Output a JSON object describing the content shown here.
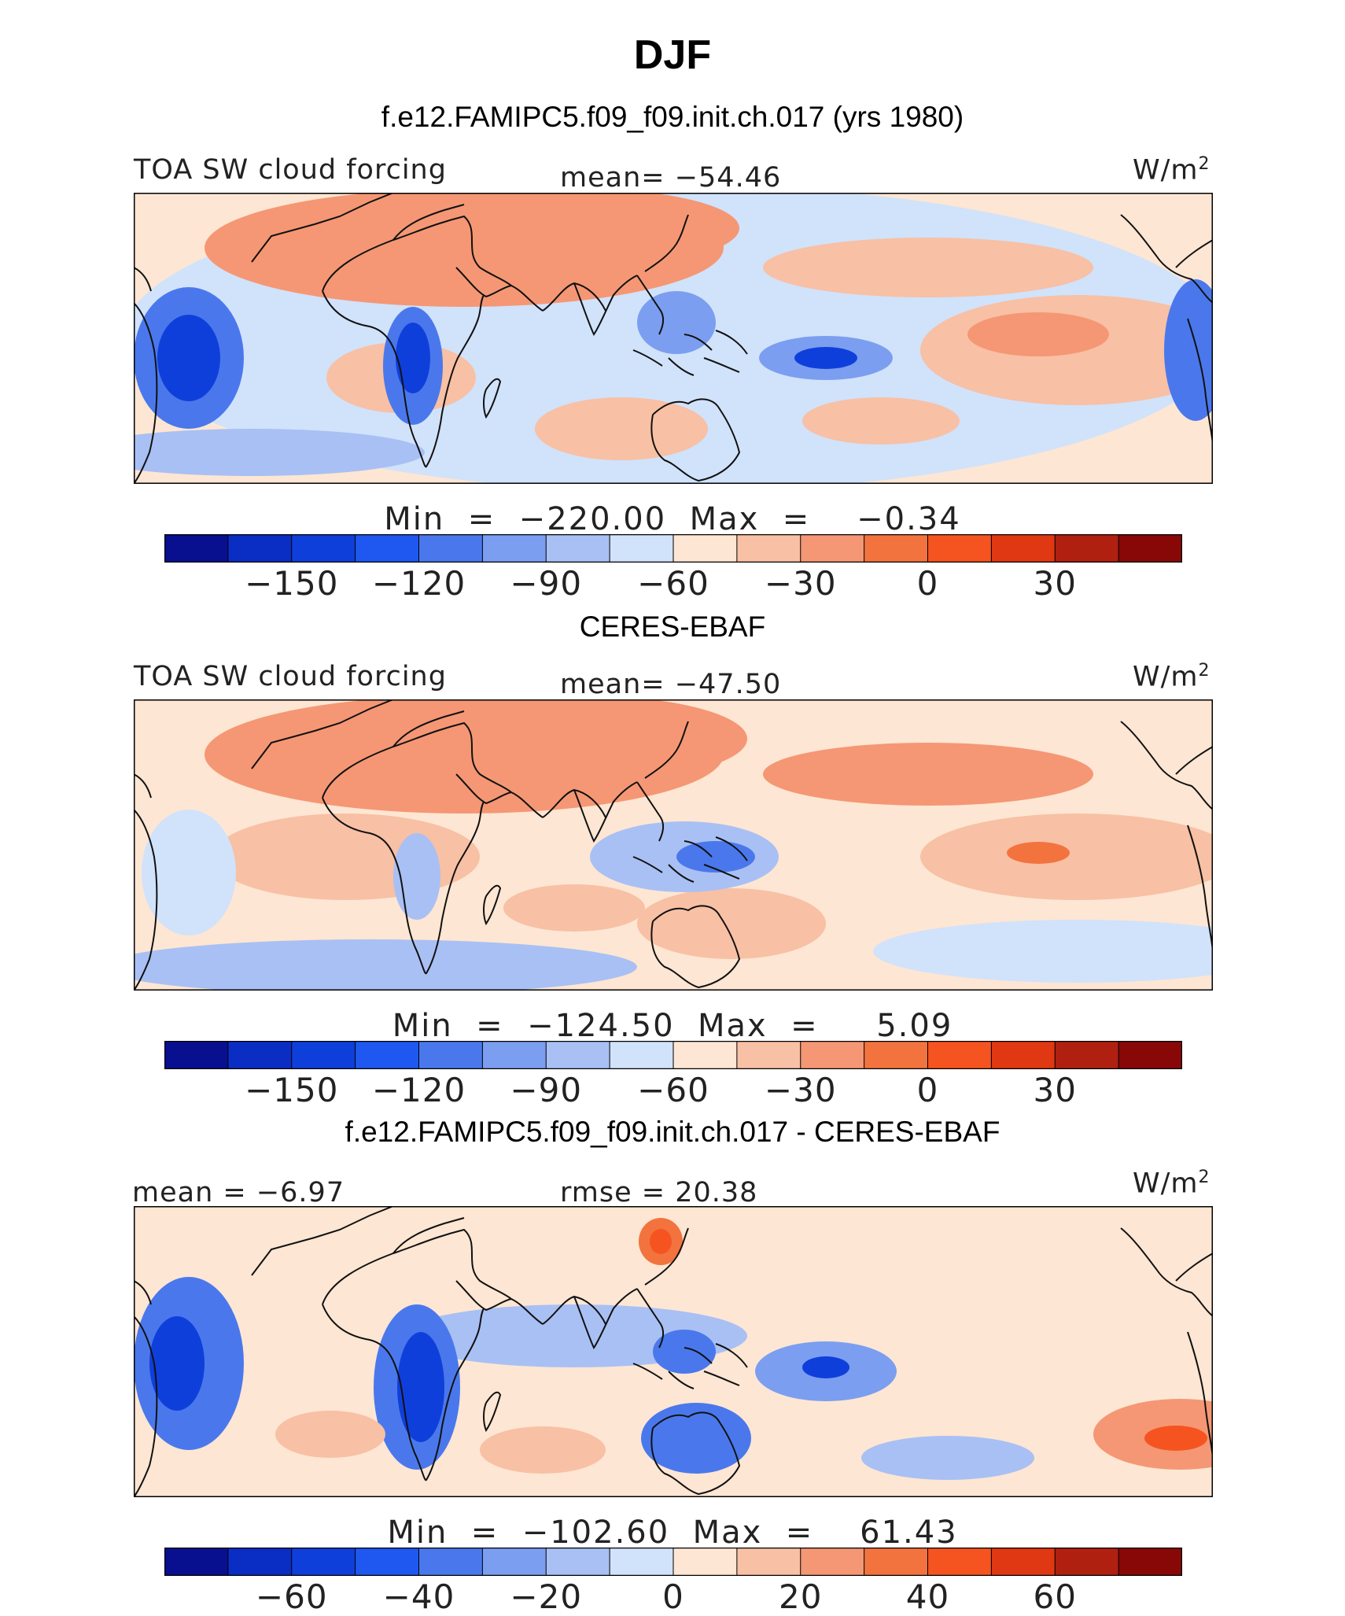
{
  "title": "DJF",
  "colors": {
    "scale": [
      "#08108f",
      "#0a2ec4",
      "#0f3fdb",
      "#1f58f0",
      "#4a78ec",
      "#7b9ef0",
      "#a9c0f4",
      "#d1e2fb",
      "#fde6d3",
      "#f8c0a4",
      "#f59774",
      "#f3733f",
      "#f55420",
      "#e03812",
      "#b02010",
      "#880808"
    ],
    "land": "#f3733f",
    "coast": "#111111",
    "frame": "#000000"
  },
  "panels": [
    {
      "header": "f.e12.FAMIPC5.f09_f09.init.ch.017 (yrs 1980)",
      "left_label": "TOA SW cloud forcing",
      "center_label": "mean=  −54.46",
      "units": "W/m",
      "units_sup": "2",
      "min_label": "Min",
      "min_eq": "=",
      "min_value": "−220.00",
      "max_label": "Max",
      "max_eq": "=",
      "max_value": "−0.34",
      "colorbar_ticks": [
        "−150",
        "−120",
        "−90",
        "−60",
        "−30",
        "0",
        "30"
      ]
    },
    {
      "header": "CERES-EBAF",
      "left_label": "TOA SW cloud forcing",
      "center_label": "mean=  −47.50",
      "units": "W/m",
      "units_sup": "2",
      "min_label": "Min",
      "min_eq": "=",
      "min_value": "−124.50",
      "max_label": "Max",
      "max_eq": "=",
      "max_value": "5.09",
      "colorbar_ticks": [
        "−150",
        "−120",
        "−90",
        "−60",
        "−30",
        "0",
        "30"
      ]
    },
    {
      "header": "f.e12.FAMIPC5.f09_f09.init.ch.017 - CERES-EBAF",
      "left_label": "mean =  −6.97",
      "center_label": "rmse =  20.38",
      "units": "W/m",
      "units_sup": "2",
      "min_label": "Min",
      "min_eq": "=",
      "min_value": "−102.60",
      "max_label": "Max",
      "max_eq": "=",
      "max_value": "61.43",
      "colorbar_ticks": [
        "−60",
        "−40",
        "−20",
        "0",
        "20",
        "40",
        "60"
      ]
    }
  ],
  "chart_data": [
    {
      "type": "heatmap",
      "title": "f.e12.FAMIPC5.f09_f09.init.ch.017 (yrs 1980)",
      "variable": "TOA SW cloud forcing",
      "units": "W/m2",
      "mean": -54.46,
      "min": -220.0,
      "max": -0.34,
      "color_levels": [
        -165,
        -150,
        -135,
        -120,
        -105,
        -90,
        -75,
        -60,
        -45,
        -30,
        -15,
        0,
        15,
        30,
        45
      ],
      "colorbar_ticks": [
        -150,
        -120,
        -90,
        -60,
        -30,
        0,
        30
      ]
    },
    {
      "type": "heatmap",
      "title": "CERES-EBAF",
      "variable": "TOA SW cloud forcing",
      "units": "W/m2",
      "mean": -47.5,
      "min": -124.5,
      "max": 5.09,
      "color_levels": [
        -165,
        -150,
        -135,
        -120,
        -105,
        -90,
        -75,
        -60,
        -45,
        -30,
        -15,
        0,
        15,
        30,
        45
      ],
      "colorbar_ticks": [
        -150,
        -120,
        -90,
        -60,
        -30,
        0,
        30
      ]
    },
    {
      "type": "heatmap",
      "title": "f.e12.FAMIPC5.f09_f09.init.ch.017 - CERES-EBAF",
      "units": "W/m2",
      "mean": -6.97,
      "rmse": 20.38,
      "min": -102.6,
      "max": 61.43,
      "color_levels": [
        -70,
        -60,
        -50,
        -40,
        -30,
        -20,
        -10,
        0,
        10,
        20,
        30,
        40,
        50,
        60,
        70
      ],
      "colorbar_ticks": [
        -60,
        -40,
        -20,
        0,
        20,
        40,
        60
      ]
    }
  ]
}
